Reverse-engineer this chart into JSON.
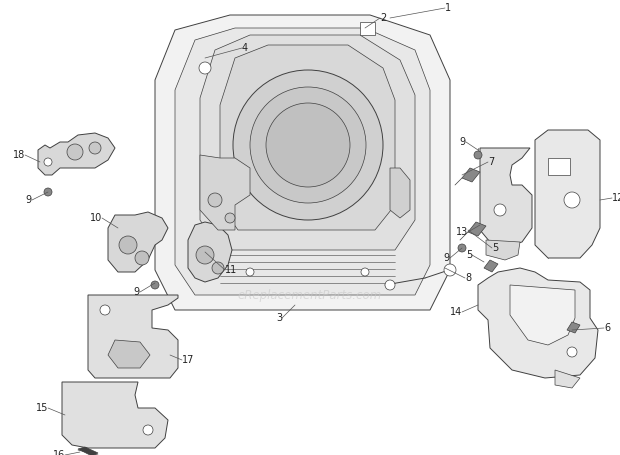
{
  "bg_color": "#ffffff",
  "line_color": "#404040",
  "label_color": "#222222",
  "watermark": "eReplacementParts.com",
  "watermark_color": "#c8c8c8",
  "figsize": [
    6.2,
    4.55
  ],
  "dpi": 100
}
